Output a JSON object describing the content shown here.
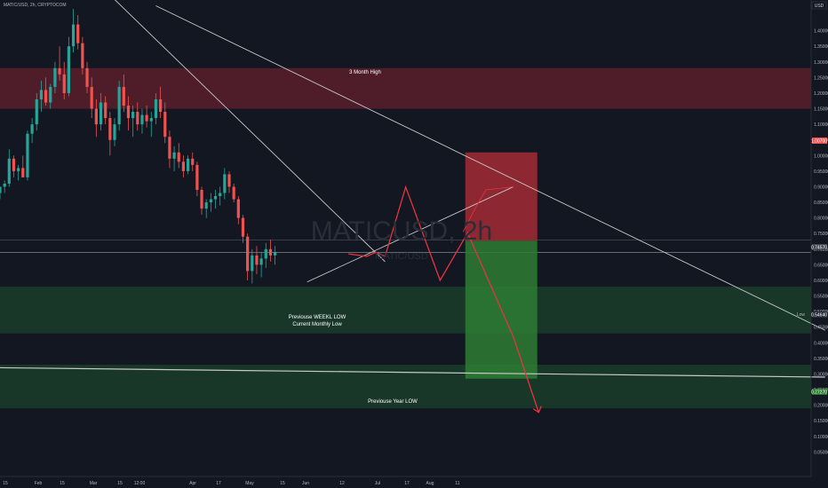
{
  "header": {
    "symbol_line": "MATIC/USD, 2h, CRYPTOCOM"
  },
  "watermark": {
    "symbol": "MATICUSD, 2h",
    "pair": "MATIC/USD"
  },
  "annotations": {
    "three_month_high": "3 Month High",
    "weekly_low_line1": "Previouse WEEKL LOW",
    "weekly_low_line2": "Current Monthly Low",
    "previous_year_low": "Previouse Year LOW"
  },
  "toolbar": {
    "currency_label": "USD"
  },
  "price_badges": {
    "upper": "1.00700",
    "mid_upper": "0.74570",
    "low_label": "Low",
    "low_value": "0.54640",
    "bottom": "0.27270"
  },
  "colors": {
    "background": "#131722",
    "red_zone": "#5b1f2c",
    "green_zone": "#1a3d2a",
    "stop_box": "#9b2a35",
    "target_box": "#2e7d32",
    "projection": "#e8333f",
    "trendline": "#c8c8c8",
    "candle_up": "#26a69a",
    "candle_down": "#ef5350"
  },
  "chart_data": {
    "type": "candlestick",
    "symbol": "MATIC/USD",
    "timeframe": "2h",
    "ylim": [
      0.0,
      1.47
    ],
    "x_ticks": [
      "15",
      "Feb",
      "15",
      "Mar",
      "15",
      "12:00",
      "Apr",
      "17",
      "May",
      "15",
      "Jun",
      "12",
      "Jul",
      "17",
      "Aug",
      "11"
    ],
    "y_ticks": [
      "1.40000",
      "1.35000",
      "1.30000",
      "1.25000",
      "1.20000",
      "1.15000",
      "1.10000",
      "1.05000",
      "1.00000",
      "0.95000",
      "0.90000",
      "0.85000",
      "0.80000",
      "0.75000",
      "0.70000",
      "0.65000",
      "0.60000",
      "0.55000",
      "0.50000",
      "0.45000",
      "0.40000",
      "0.35000",
      "0.30000",
      "0.25000",
      "0.20000",
      "0.15000",
      "0.10000",
      "0.05000"
    ],
    "zones": [
      {
        "label": "3 Month High",
        "from": 1.15,
        "to": 1.28
      },
      {
        "label": "Previouse WEEKL LOW / Current Monthly Low",
        "from": 0.43,
        "to": 0.58
      },
      {
        "label": "Previouse Year LOW",
        "from": 0.19,
        "to": 0.33
      }
    ],
    "position": {
      "stop": 1.01,
      "entry": 0.727,
      "target": 0.285
    },
    "projection_path": [
      [
        0.76,
        0.685
      ],
      [
        0.8,
        0.677
      ],
      [
        0.82,
        0.69
      ],
      [
        0.84,
        0.677
      ],
      [
        0.885,
        0.899
      ],
      [
        0.96,
        0.6
      ],
      [
        1.02,
        0.752
      ],
      [
        1.12,
        0.418
      ],
      [
        1.175,
        0.177
      ]
    ],
    "projection_tail": [
      [
        1.01,
        0.755
      ],
      [
        1.04,
        0.84
      ],
      [
        1.06,
        0.89
      ],
      [
        1.12,
        0.9
      ]
    ],
    "trendlines": [
      {
        "from": [
          0.0,
          0.32
        ],
        "to": [
          1.8,
          0.29
        ]
      },
      {
        "from": [
          0.34,
          1.48
        ],
        "to": [
          1.8,
          0.44
        ]
      },
      {
        "from": [
          0.25,
          1.5
        ],
        "to": [
          0.84,
          0.66
        ]
      },
      {
        "from": [
          0.67,
          0.595
        ],
        "to": [
          1.12,
          0.9
        ]
      }
    ],
    "candles": [
      [
        0.0,
        0.88,
        0.9,
        0.86,
        0.9
      ],
      [
        0.01,
        0.9,
        0.92,
        0.88,
        0.91
      ],
      [
        0.02,
        0.91,
        1.02,
        0.9,
        0.99
      ],
      [
        0.03,
        0.99,
        1.0,
        0.93,
        0.95
      ],
      [
        0.04,
        0.95,
        0.97,
        0.92,
        0.96
      ],
      [
        0.05,
        0.96,
        1.0,
        0.94,
        0.93
      ],
      [
        0.06,
        0.93,
        1.08,
        0.92,
        1.07
      ],
      [
        0.07,
        1.07,
        1.12,
        1.04,
        1.1
      ],
      [
        0.08,
        1.1,
        1.2,
        1.08,
        1.18
      ],
      [
        0.09,
        1.18,
        1.24,
        1.14,
        1.21
      ],
      [
        0.1,
        1.21,
        1.25,
        1.16,
        1.17
      ],
      [
        0.11,
        1.17,
        1.23,
        1.15,
        1.22
      ],
      [
        0.12,
        1.22,
        1.3,
        1.2,
        1.28
      ],
      [
        0.13,
        1.28,
        1.35,
        1.24,
        1.26
      ],
      [
        0.14,
        1.26,
        1.3,
        1.18,
        1.2
      ],
      [
        0.15,
        1.2,
        1.38,
        1.19,
        1.35
      ],
      [
        0.16,
        1.35,
        1.47,
        1.33,
        1.42
      ],
      [
        0.17,
        1.42,
        1.45,
        1.34,
        1.36
      ],
      [
        0.18,
        1.36,
        1.38,
        1.26,
        1.28
      ],
      [
        0.19,
        1.28,
        1.3,
        1.2,
        1.22
      ],
      [
        0.2,
        1.22,
        1.25,
        1.12,
        1.15
      ],
      [
        0.21,
        1.15,
        1.18,
        1.06,
        1.1
      ],
      [
        0.22,
        1.1,
        1.2,
        1.08,
        1.17
      ],
      [
        0.23,
        1.17,
        1.19,
        1.1,
        1.12
      ],
      [
        0.24,
        1.12,
        1.14,
        1.0,
        1.05
      ],
      [
        0.25,
        1.05,
        1.12,
        1.03,
        1.1
      ],
      [
        0.26,
        1.1,
        1.24,
        1.08,
        1.22
      ],
      [
        0.27,
        1.22,
        1.26,
        1.14,
        1.16
      ],
      [
        0.28,
        1.16,
        1.19,
        1.08,
        1.12
      ],
      [
        0.29,
        1.12,
        1.16,
        1.06,
        1.14
      ],
      [
        0.3,
        1.14,
        1.17,
        1.08,
        1.1
      ],
      [
        0.31,
        1.1,
        1.15,
        1.07,
        1.13
      ],
      [
        0.32,
        1.13,
        1.16,
        1.09,
        1.11
      ],
      [
        0.33,
        1.11,
        1.14,
        1.06,
        1.12
      ],
      [
        0.34,
        1.12,
        1.2,
        1.1,
        1.18
      ],
      [
        0.35,
        1.18,
        1.22,
        1.12,
        1.14
      ],
      [
        0.36,
        1.14,
        1.17,
        1.04,
        1.06
      ],
      [
        0.37,
        1.06,
        1.08,
        0.96,
        0.99
      ],
      [
        0.38,
        0.99,
        1.03,
        0.95,
        1.01
      ],
      [
        0.39,
        1.01,
        1.04,
        0.96,
        0.98
      ],
      [
        0.4,
        0.98,
        1.0,
        0.93,
        0.95
      ],
      [
        0.41,
        0.95,
        1.0,
        0.94,
        0.99
      ],
      [
        0.42,
        0.99,
        1.01,
        0.95,
        0.97
      ],
      [
        0.43,
        0.97,
        0.98,
        0.87,
        0.89
      ],
      [
        0.44,
        0.89,
        0.9,
        0.81,
        0.83
      ],
      [
        0.45,
        0.83,
        0.86,
        0.8,
        0.85
      ],
      [
        0.46,
        0.85,
        0.88,
        0.82,
        0.86
      ],
      [
        0.47,
        0.86,
        0.89,
        0.83,
        0.87
      ],
      [
        0.48,
        0.87,
        0.9,
        0.84,
        0.88
      ],
      [
        0.49,
        0.88,
        0.96,
        0.86,
        0.94
      ],
      [
        0.5,
        0.94,
        0.95,
        0.88,
        0.9
      ],
      [
        0.51,
        0.9,
        0.91,
        0.85,
        0.86
      ],
      [
        0.52,
        0.86,
        0.87,
        0.78,
        0.8
      ],
      [
        0.53,
        0.8,
        0.81,
        0.72,
        0.74
      ],
      [
        0.54,
        0.74,
        0.75,
        0.6,
        0.63
      ],
      [
        0.55,
        0.63,
        0.7,
        0.59,
        0.68
      ],
      [
        0.56,
        0.68,
        0.71,
        0.62,
        0.65
      ],
      [
        0.57,
        0.65,
        0.69,
        0.61,
        0.67
      ],
      [
        0.58,
        0.67,
        0.72,
        0.64,
        0.7
      ],
      [
        0.59,
        0.7,
        0.73,
        0.66,
        0.68
      ],
      [
        0.6,
        0.68,
        0.71,
        0.65,
        0.69
      ]
    ]
  }
}
